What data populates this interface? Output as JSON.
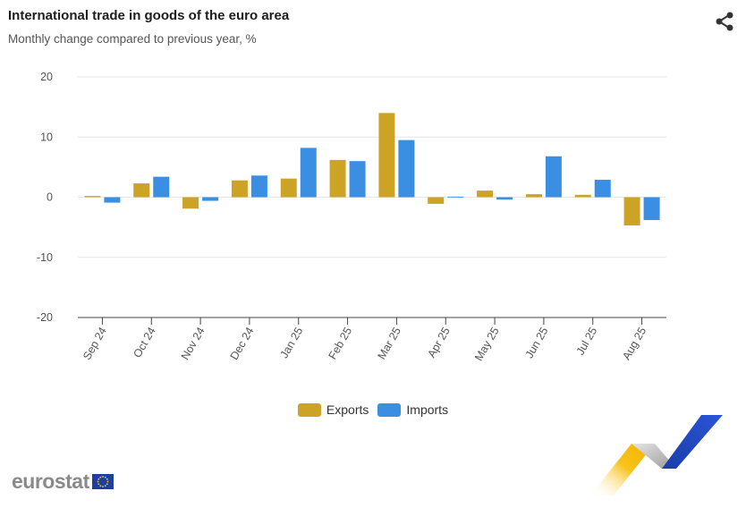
{
  "header": {
    "title": "International trade in goods of the euro area",
    "subtitle": "Monthly change compared to previous year, %"
  },
  "logo": {
    "text": "eurostat"
  },
  "icons": {
    "share": "share-icon",
    "flag": "eu-flag-icon"
  },
  "chart_data": {
    "type": "bar",
    "title": "International trade in goods of the euro area",
    "subtitle": "Monthly change compared to previous year, %",
    "xlabel": "",
    "ylabel": "",
    "categories": [
      "Sep 24",
      "Oct 24",
      "Nov 24",
      "Dec 24",
      "Jan 25",
      "Feb 25",
      "Mar 25",
      "Apr 25",
      "May 25",
      "Jun 25",
      "Jul 25",
      "Aug 25"
    ],
    "series": [
      {
        "name": "Exports",
        "color": "#cda325",
        "values": [
          0.2,
          2.3,
          -1.9,
          2.8,
          3.1,
          6.2,
          14.0,
          -1.1,
          1.1,
          0.5,
          0.4,
          -4.7
        ]
      },
      {
        "name": "Imports",
        "color": "#3b8fe3",
        "values": [
          -0.9,
          3.4,
          -0.6,
          3.6,
          8.2,
          6.0,
          9.5,
          0.1,
          -0.4,
          6.8,
          2.9,
          -3.8
        ]
      }
    ],
    "ylim": [
      -20,
      20
    ],
    "yticks": [
      20,
      10,
      0,
      -10,
      -20
    ],
    "grid": true,
    "legend": "bottom-center"
  }
}
